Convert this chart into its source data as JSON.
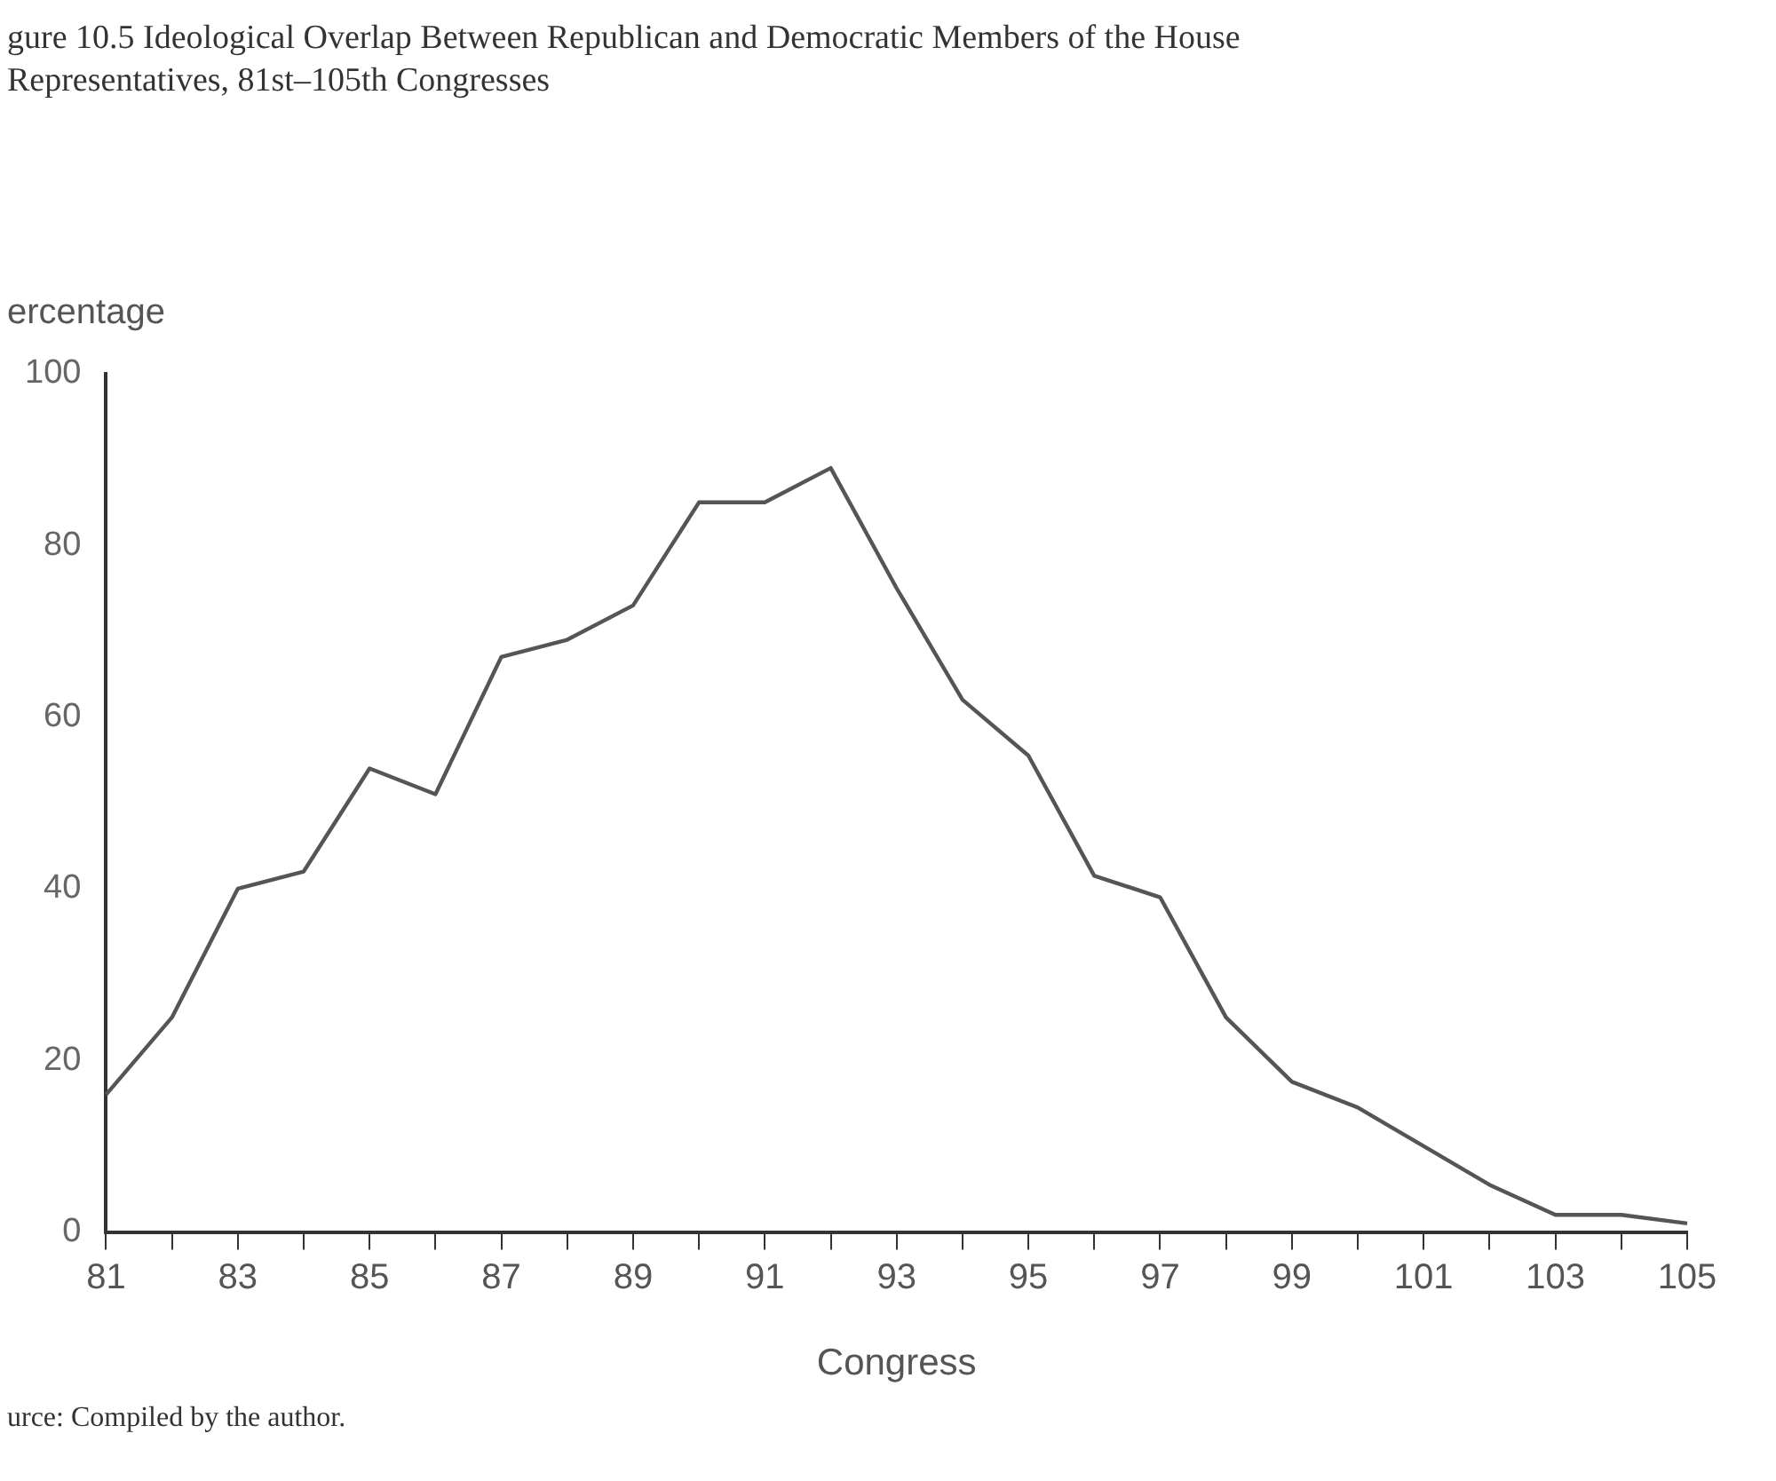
{
  "chart_data": {
    "type": "line",
    "title": "gure 10.5 Ideological Overlap Between Republican and Democratic Members of the House",
    "subtitle": "Representatives, 81st–105th Congresses",
    "ylabel": "ercentage",
    "xlabel": "Congress",
    "categories": [
      "81",
      null,
      "83",
      null,
      "85",
      null,
      "87",
      null,
      "89",
      null,
      "91",
      null,
      "93",
      null,
      "95",
      null,
      "97",
      null,
      "99",
      null,
      "101",
      null,
      "103",
      null,
      "105"
    ],
    "series": [
      {
        "color": "#555555",
        "values": [
          16,
          25,
          40,
          42,
          54,
          51,
          67,
          69,
          73,
          85,
          85,
          89,
          75,
          62,
          55.5,
          41.5,
          39,
          25,
          17.5,
          14.5,
          10,
          5.5,
          2,
          2,
          1
        ]
      }
    ],
    "ylim": [
      0,
      100
    ],
    "yticks": [
      0,
      20,
      40,
      60,
      80,
      100
    ],
    "grid": false,
    "legend": false,
    "marker": "none",
    "line_style": "solid",
    "annotations": [
      "urce: Compiled by the author."
    ]
  }
}
